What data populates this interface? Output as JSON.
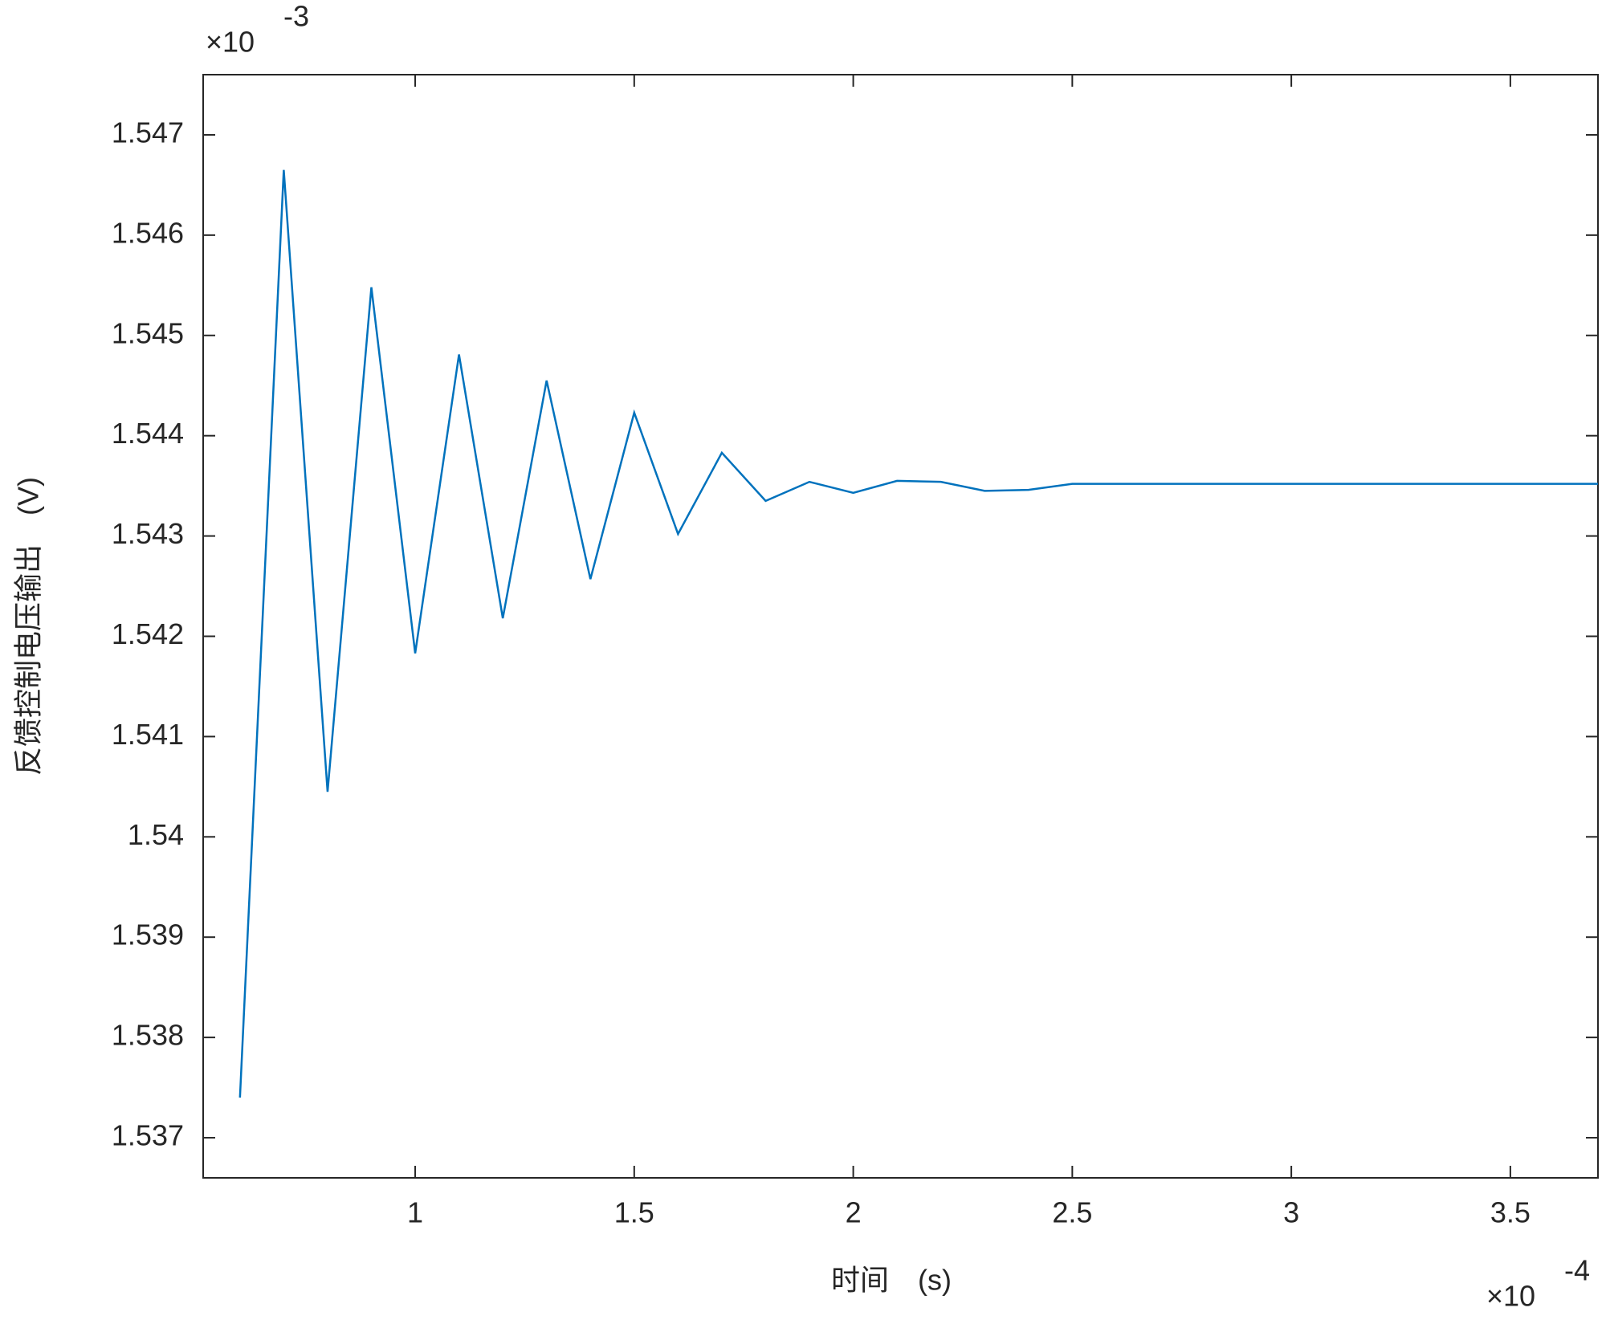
{
  "chart_data": {
    "type": "line",
    "x_label": "时间　(s)",
    "y_label": "反馈控制电压输出　(V)",
    "x_multiplier": {
      "base": "×10",
      "exponent": "-4"
    },
    "y_multiplier": {
      "base": "×10",
      "exponent": "-3"
    },
    "x": [
      0.6,
      0.7,
      0.8,
      0.9,
      1.0,
      1.1,
      1.2,
      1.3,
      1.4,
      1.5,
      1.6,
      1.7,
      1.8,
      1.9,
      2.0,
      2.1,
      2.2,
      2.3,
      2.4,
      2.5,
      3.7
    ],
    "series": [
      {
        "color": "#0072bd",
        "values": [
          1.5374,
          1.54665,
          1.54045,
          1.54548,
          1.54183,
          1.54481,
          1.54218,
          1.54455,
          1.54257,
          1.54423,
          1.54302,
          1.54383,
          1.54335,
          1.54354,
          1.54343,
          1.54355,
          1.54354,
          1.54345,
          1.54346,
          1.54352,
          1.54352
        ]
      }
    ],
    "xlim": [
      0.516,
      3.7
    ],
    "ylim": [
      1.5366,
      1.5476
    ],
    "xticks": [
      1,
      1.5,
      2,
      2.5,
      3,
      3.5
    ],
    "yticks": [
      1.537,
      1.538,
      1.539,
      1.54,
      1.541,
      1.542,
      1.543,
      1.544,
      1.545,
      1.546,
      1.547
    ],
    "grid": false
  }
}
